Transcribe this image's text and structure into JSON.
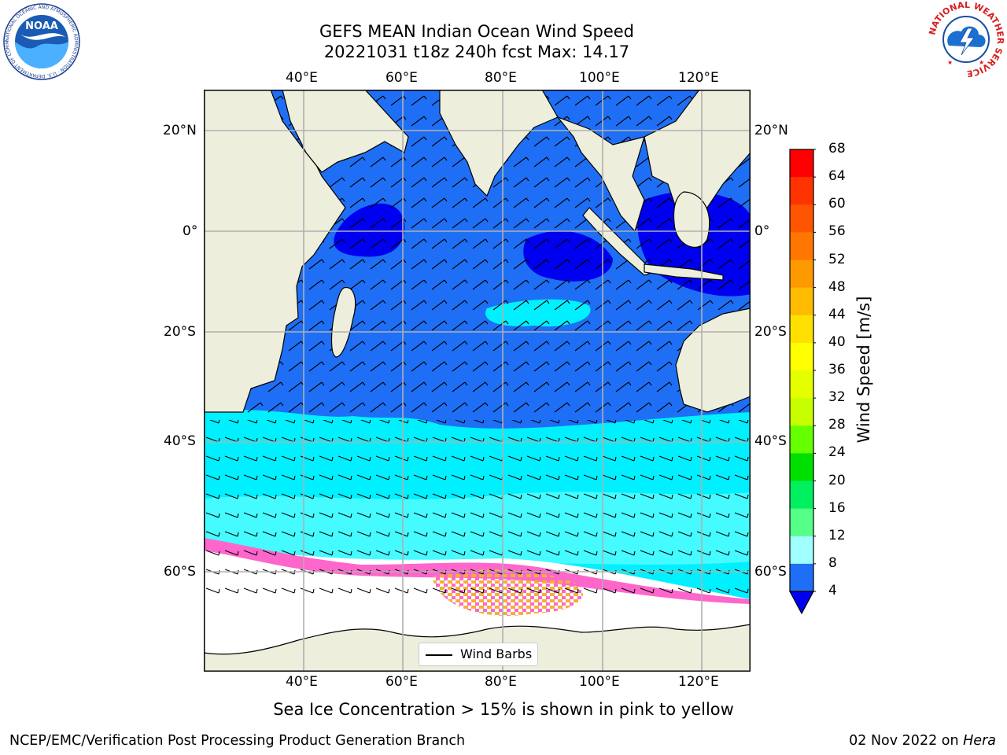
{
  "title": {
    "line1": "GEFS MEAN Indian Ocean Wind Speed",
    "line2": "20221031 t18z 240h fcst   Max: 14.17"
  },
  "map": {
    "lon_ticks": [
      "40°E",
      "60°E",
      "80°E",
      "100°E",
      "120°E"
    ],
    "lat_ticks": [
      "20°N",
      "0°",
      "20°S",
      "40°S",
      "60°S"
    ],
    "lon_range": [
      20,
      130
    ],
    "lat_range": [
      -76,
      28
    ],
    "legend_label": "Wind Barbs",
    "colors": {
      "land": "#eeeedc",
      "ocean_4_8": "#1e6ff5",
      "ocean_low": "#0000f0",
      "ocean_8_12": "#00f0ff",
      "ocean_12_16": "#45fbff",
      "sea_ice_low": "#ff66cc",
      "sea_ice_high": "#f5b032"
    }
  },
  "colorbar": {
    "label": "Wind Speed [m/s]",
    "ticks": [
      "68",
      "64",
      "60",
      "56",
      "52",
      "48",
      "44",
      "40",
      "36",
      "32",
      "28",
      "24",
      "20",
      "16",
      "12",
      "8",
      "4"
    ],
    "segment_colors": [
      "#ff0000",
      "#ff3300",
      "#ff5500",
      "#ff7700",
      "#ff9900",
      "#ffbb00",
      "#ffe000",
      "#ffff00",
      "#e6ff00",
      "#c8ff00",
      "#66ff00",
      "#00e000",
      "#00f060",
      "#55ff88",
      "#a0ffff",
      "#45fbff",
      "#00f0ff",
      "#1e6ff5"
    ],
    "extend_color": "#0000f0"
  },
  "note": "Sea Ice Concentration > 15% is shown in pink to yellow",
  "footer": {
    "left": "NCEP/EMC/Verification Post Processing Product Generation Branch",
    "right_date": "02 Nov 2022 on ",
    "right_host": "Hera"
  },
  "logos": {
    "noaa_text": "NOAA",
    "noaa_ring_text": "NATIONAL OCEANIC AND ATMOSPHERIC ADMINISTRATION · U.S. DEPARTMENT OF COMMERCE",
    "nws_ring_text": "NATIONAL WEATHER SERVICE"
  }
}
